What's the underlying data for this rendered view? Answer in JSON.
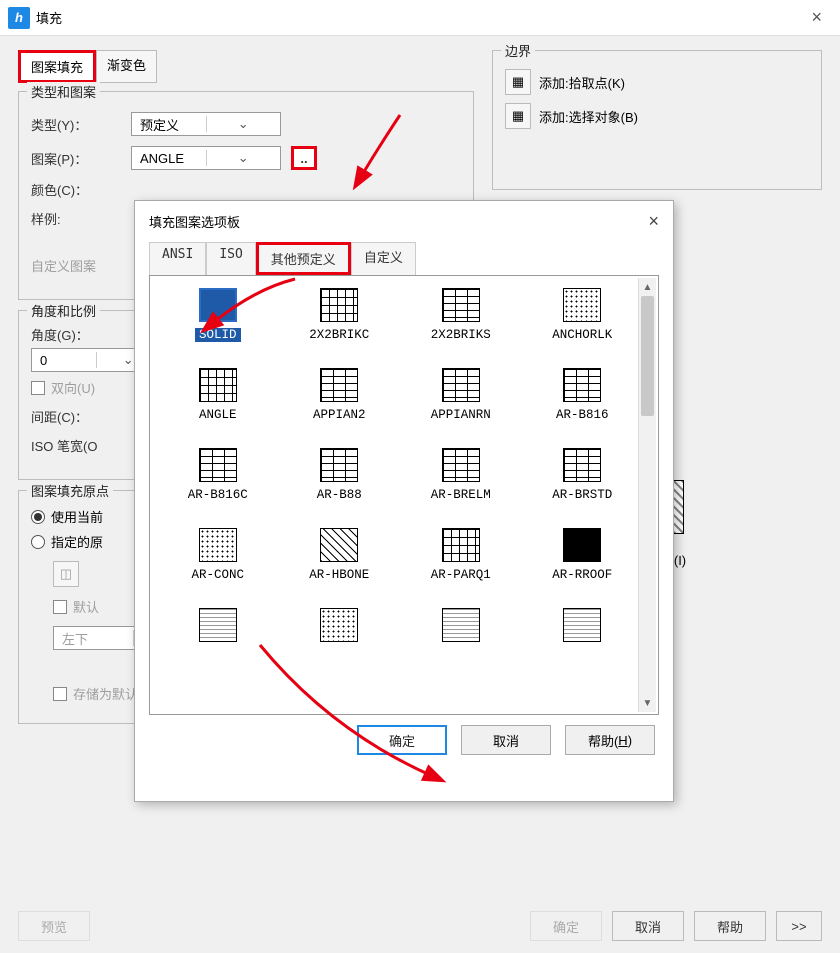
{
  "main_title": "填充",
  "tabs": {
    "pattern": "图案填充",
    "gradient": "渐变色"
  },
  "type_group": {
    "legend": "类型和图案",
    "type_label": "类型(Y)：",
    "type_value": "预定义",
    "pattern_label": "图案(P)：",
    "pattern_value": "ANGLE",
    "color_label": "颜色(C)：",
    "sample_label": "样例:",
    "custom_label": "自定义图案"
  },
  "angle_group": {
    "legend": "角度和比例",
    "angle_label": "角度(G)：",
    "angle_value": "0",
    "two_way": "双向(U)",
    "spacing": "间距(C)：",
    "iso_pen": "ISO 笔宽(O"
  },
  "origin_group": {
    "legend": "图案填充原点",
    "use_current": "使用当前",
    "specify": "指定的原",
    "default_origin": "默认",
    "dropdown_value": "左下",
    "store": "存储为默认原点(F)"
  },
  "boundary": {
    "legend": "边界",
    "pick": "添加:拾取点(K)",
    "select": "添加:选择对象(B)"
  },
  "island": {
    "ignore": "忽略(I)"
  },
  "footer": {
    "preview": "预览",
    "ok": "确定",
    "cancel": "取消",
    "help": "帮助"
  },
  "inner": {
    "title": "填充图案选项板",
    "tabs": {
      "ansi": "ANSI",
      "iso": "ISO",
      "other": "其他预定义",
      "custom": "自定义"
    },
    "ok": "确定",
    "cancel": "取消",
    "help": "帮助(H)",
    "patterns": [
      {
        "name": "SOLID",
        "cls": "solid",
        "selected": true
      },
      {
        "name": "2X2BRIKC",
        "cls": "grid-swatch"
      },
      {
        "name": "2X2BRIKS",
        "cls": "brick-swatch"
      },
      {
        "name": "ANCHORLK",
        "cls": "dots-swatch"
      },
      {
        "name": "ANGLE",
        "cls": "grid-swatch"
      },
      {
        "name": "APPIAN2",
        "cls": "brick-swatch"
      },
      {
        "name": "APPIANRN",
        "cls": "brick-swatch"
      },
      {
        "name": "AR-B816",
        "cls": "brick-swatch"
      },
      {
        "name": "AR-B816C",
        "cls": "brick-swatch"
      },
      {
        "name": "AR-B88",
        "cls": "brick-swatch"
      },
      {
        "name": "AR-BRELM",
        "cls": "brick-swatch"
      },
      {
        "name": "AR-BRSTD",
        "cls": "brick-swatch"
      },
      {
        "name": "AR-CONC",
        "cls": "dots-swatch"
      },
      {
        "name": "AR-HBONE",
        "cls": "diag-swatch"
      },
      {
        "name": "AR-PARQ1",
        "cls": "grid-swatch"
      },
      {
        "name": "AR-RROOF",
        "cls": "dark-swatch"
      },
      {
        "name": "",
        "cls": "hlines-swatch"
      },
      {
        "name": "",
        "cls": "dots-swatch"
      },
      {
        "name": "",
        "cls": "hlines-swatch"
      },
      {
        "name": "",
        "cls": "hlines-swatch"
      }
    ]
  }
}
